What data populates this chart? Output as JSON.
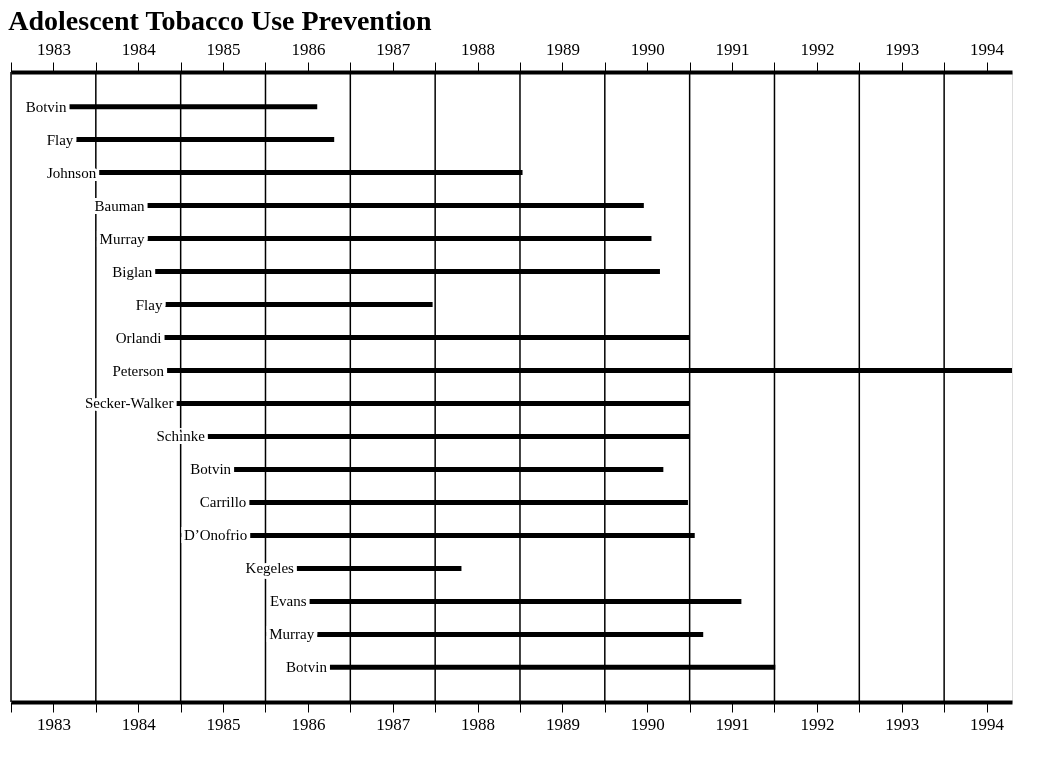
{
  "chart_data": {
    "type": "bar",
    "orientation": "horizontal",
    "title": "Adolescent Tobacco Use Prevention",
    "categories": [
      "Botvin",
      "Flay",
      "Johnson",
      "Bauman",
      "Murray",
      "Biglan",
      "Flay",
      "Orlandi",
      "Peterson",
      "Secker-Walker",
      "Schinke",
      "Botvin",
      "Carrillo",
      "D’Onofrio",
      "Kegeles",
      "Evans",
      "Murray",
      "Botvin"
    ],
    "base": [
      1983.69,
      1983.77,
      1984.04,
      1984.61,
      1984.61,
      1984.7,
      1984.82,
      1984.81,
      1984.84,
      1984.95,
      1985.32,
      1985.63,
      1985.81,
      1985.82,
      1986.37,
      1986.52,
      1986.61,
      1986.76
    ],
    "values": [
      2.92,
      3.04,
      4.99,
      5.85,
      5.94,
      5.95,
      3.15,
      6.19,
      9.96,
      6.05,
      5.68,
      5.06,
      5.17,
      5.24,
      1.94,
      5.09,
      4.55,
      5.25
    ],
    "color": "#000000",
    "xlim": [
      1983,
      1994.8
    ],
    "xticks": [
      {
        "value": 1983,
        "label": null
      },
      {
        "value": 1983.5,
        "label": "1983"
      },
      {
        "value": 1984,
        "label": null
      },
      {
        "value": 1984.5,
        "label": "1984"
      },
      {
        "value": 1985,
        "label": null
      },
      {
        "value": 1985.5,
        "label": "1985"
      },
      {
        "value": 1986,
        "label": null
      },
      {
        "value": 1986.5,
        "label": "1986"
      },
      {
        "value": 1987,
        "label": null
      },
      {
        "value": 1987.5,
        "label": "1987"
      },
      {
        "value": 1988,
        "label": null
      },
      {
        "value": 1988.5,
        "label": "1988"
      },
      {
        "value": 1989,
        "label": null
      },
      {
        "value": 1989.5,
        "label": "1989"
      },
      {
        "value": 1990,
        "label": null
      },
      {
        "value": 1990.5,
        "label": "1990"
      },
      {
        "value": 1991,
        "label": null
      },
      {
        "value": 1991.5,
        "label": "1991"
      },
      {
        "value": 1992,
        "label": null
      },
      {
        "value": 1992.5,
        "label": "1992"
      },
      {
        "value": 1993,
        "label": null
      },
      {
        "value": 1993.5,
        "label": "1993"
      },
      {
        "value": 1994,
        "label": null
      },
      {
        "value": 1994.5,
        "label": "1994"
      }
    ],
    "x2lim": [
      1983,
      1994.8
    ],
    "x2ticks": [
      {
        "value": 1983,
        "label": null
      },
      {
        "value": 1983.5,
        "label": "1983"
      },
      {
        "value": 1984,
        "label": null
      },
      {
        "value": 1984.5,
        "label": "1984"
      },
      {
        "value": 1985,
        "label": null
      },
      {
        "value": 1985.5,
        "label": "1985"
      },
      {
        "value": 1986,
        "label": null
      },
      {
        "value": 1986.5,
        "label": "1986"
      },
      {
        "value": 1987,
        "label": null
      },
      {
        "value": 1987.5,
        "label": "1987"
      },
      {
        "value": 1988,
        "label": null
      },
      {
        "value": 1988.5,
        "label": "1988"
      },
      {
        "value": 1989,
        "label": null
      },
      {
        "value": 1989.5,
        "label": "1989"
      },
      {
        "value": 1990,
        "label": null
      },
      {
        "value": 1990.5,
        "label": "1990"
      },
      {
        "value": 1991,
        "label": null
      },
      {
        "value": 1991.5,
        "label": "1991"
      },
      {
        "value": 1992,
        "label": null
      },
      {
        "value": 1992.5,
        "label": "1992"
      },
      {
        "value": 1993,
        "label": null
      },
      {
        "value": 1993.5,
        "label": "1993"
      },
      {
        "value": 1994,
        "label": null
      },
      {
        "value": 1994.5,
        "label": "1994"
      }
    ],
    "grid": "x"
  }
}
